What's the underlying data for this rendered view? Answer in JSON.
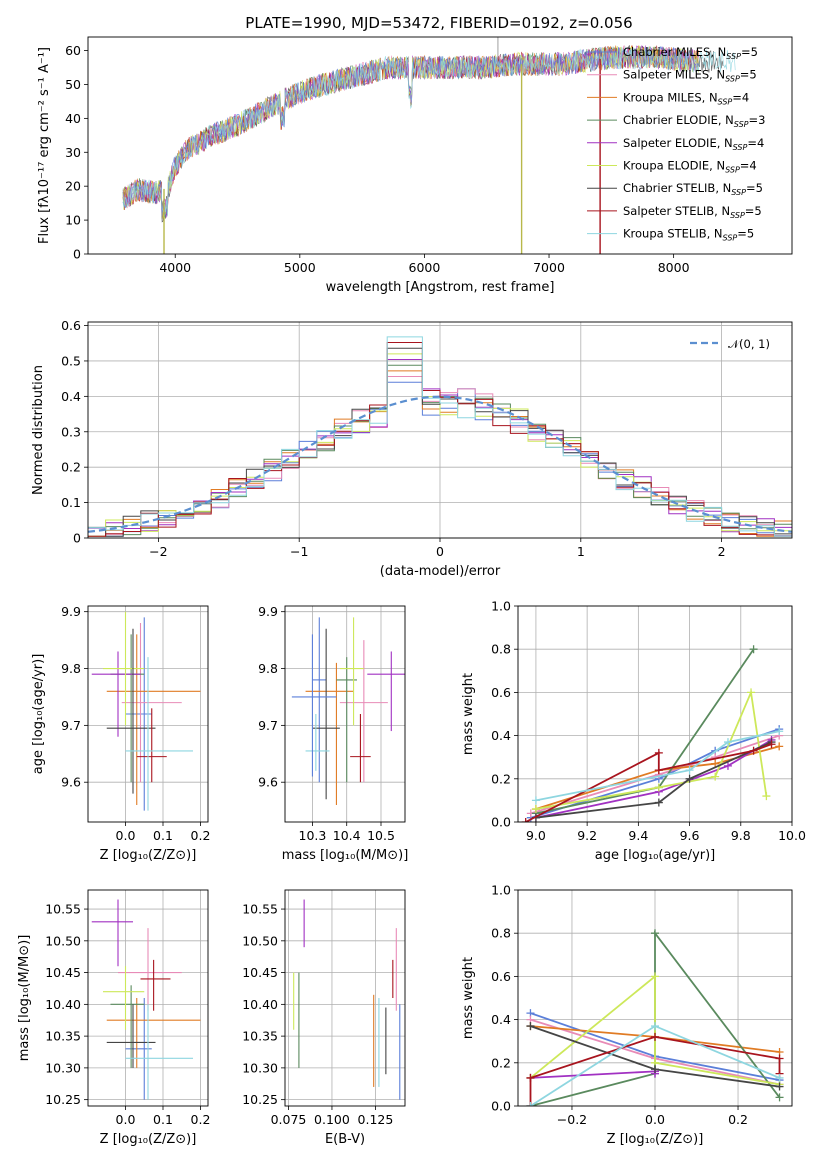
{
  "figure_title": "PLATE=1990, MJD=53472, FIBERID=0192, z=0.056",
  "models": [
    {
      "name": "Chabrier MILES",
      "nssp": "5",
      "color": "#5b7fd9"
    },
    {
      "name": "Salpeter MILES",
      "nssp": "5",
      "color": "#e88bb7"
    },
    {
      "name": "Kroupa MILES",
      "nssp": "4",
      "color": "#e07b24"
    },
    {
      "name": "Chabrier ELODIE",
      "nssp": "3",
      "color": "#5a8a5e"
    },
    {
      "name": "Salpeter ELODIE",
      "nssp": "4",
      "color": "#a131c2"
    },
    {
      "name": "Kroupa ELODIE",
      "nssp": "4",
      "color": "#cde85a"
    },
    {
      "name": "Chabrier STELIB",
      "nssp": "5",
      "color": "#454545"
    },
    {
      "name": "Salpeter STELIB",
      "nssp": "5",
      "color": "#a8141e"
    },
    {
      "name": "Kroupa STELIB",
      "nssp": "5",
      "color": "#8ed6e0"
    }
  ],
  "chart_data": [
    {
      "id": "spectrum",
      "type": "line",
      "title": "PLATE=1990, MJD=53472, FIBERID=0192, z=0.056",
      "xlabel": "wavelength [Angstrom, rest frame]",
      "ylabel": "Flux [fλ10⁻¹⁷ erg cm⁻² s⁻¹ A⁻¹]",
      "xlim": [
        3300,
        8950
      ],
      "ylim": [
        0,
        64
      ],
      "xticks": [
        4000,
        5000,
        6000,
        7000,
        8000
      ],
      "yticks": [
        0,
        10,
        20,
        30,
        40,
        50,
        60
      ],
      "grid": false,
      "legend_position": "right",
      "continuum": {
        "x": [
          3580,
          3700,
          3850,
          3950,
          4000,
          4100,
          4300,
          4500,
          4700,
          4900,
          5100,
          5300,
          5500,
          5700,
          5900,
          6100,
          6300,
          6500,
          6700,
          6900,
          7100,
          7300,
          7500,
          7700,
          7900,
          8100,
          8300,
          8500
        ],
        "y": [
          16,
          19,
          18,
          20,
          26,
          31,
          35,
          38,
          42,
          46,
          49,
          51,
          53,
          55,
          55,
          55,
          55,
          55,
          56,
          56,
          56,
          57,
          58,
          58,
          58,
          57,
          57,
          57
        ]
      },
      "dropouts": [
        3910,
        6780,
        7410
      ]
    },
    {
      "id": "residuals",
      "type": "histogram",
      "xlabel": "(data-model)/error",
      "ylabel": "Normed distribution",
      "xlim": [
        -2.5,
        2.5
      ],
      "ylim": [
        0,
        0.61
      ],
      "xticks": [
        -2,
        -1,
        0,
        1,
        2
      ],
      "yticks": [
        0.0,
        0.1,
        0.2,
        0.3,
        0.4,
        0.5,
        0.6
      ],
      "xtick_labels": [
        "−2",
        "−1",
        "0",
        "1",
        "2"
      ],
      "grid": true,
      "legend_position": "top-right",
      "reference_label": "𝒩(0, 1)",
      "reference_color": "#5b8fd0",
      "bin_width": 0.125
    },
    {
      "id": "age-vs-Z",
      "type": "scatter-errorbar",
      "xlabel": "Z [log₁₀(Z/Z⊙)]",
      "ylabel": "age  [log₁₀(age/yr)]",
      "xlim": [
        -0.1,
        0.22
      ],
      "ylim": [
        9.53,
        9.91
      ],
      "xticks": [
        0.0,
        0.1,
        0.2
      ],
      "yticks": [
        9.6,
        9.7,
        9.8,
        9.9
      ],
      "xtick_labels": [
        "0.0",
        "0.1",
        "0.2"
      ],
      "ytick_labels": [
        "9.6",
        "9.7",
        "9.8",
        "9.9"
      ],
      "grid": true,
      "points": [
        {
          "x": 0.05,
          "y": 9.72,
          "xl": 0.0,
          "xh": 0.07,
          "yl": 9.55,
          "yh": 9.89,
          "c": 0
        },
        {
          "x": 0.04,
          "y": 9.74,
          "xl": -0.01,
          "xh": 0.15,
          "yl": 9.6,
          "yh": 9.88,
          "c": 1
        },
        {
          "x": 0.03,
          "y": 9.76,
          "xl": -0.05,
          "xh": 0.2,
          "yl": 9.56,
          "yh": 9.86,
          "c": 2
        },
        {
          "x": 0.015,
          "y": 9.79,
          "xl": -0.04,
          "xh": 0.05,
          "yl": 9.6,
          "yh": 9.86,
          "c": 3
        },
        {
          "x": -0.02,
          "y": 9.79,
          "xl": -0.09,
          "xh": 0.04,
          "yl": 9.68,
          "yh": 9.83,
          "c": 4
        },
        {
          "x": 0.0,
          "y": 9.8,
          "xl": -0.06,
          "xh": 0.05,
          "yl": 9.7,
          "yh": 9.9,
          "c": 5
        },
        {
          "x": 0.02,
          "y": 9.695,
          "xl": -0.05,
          "xh": 0.08,
          "yl": 9.58,
          "yh": 9.87,
          "c": 6
        },
        {
          "x": 0.07,
          "y": 9.645,
          "xl": 0.03,
          "xh": 0.11,
          "yl": 9.6,
          "yh": 9.73,
          "c": 7
        },
        {
          "x": 0.06,
          "y": 9.655,
          "xl": 0.0,
          "xh": 0.18,
          "yl": 9.55,
          "yh": 9.82,
          "c": 8
        }
      ]
    },
    {
      "id": "age-vs-mass",
      "type": "scatter-errorbar",
      "xlabel": "mass [log₁₀(M/M⊙)]",
      "ylabel": "",
      "xlim": [
        10.22,
        10.57
      ],
      "ylim": [
        9.53,
        9.91
      ],
      "xticks": [
        10.3,
        10.4,
        10.5
      ],
      "yticks": [
        9.6,
        9.7,
        9.8,
        9.9
      ],
      "xtick_labels": [
        "10.3",
        "10.4",
        "10.5"
      ],
      "ytick_labels": [
        "9.6",
        "9.7",
        "9.8",
        "9.9"
      ],
      "grid": true,
      "points": [
        {
          "x": 10.32,
          "y": 9.78,
          "xl": 10.3,
          "xh": 10.34,
          "yl": 9.6,
          "yh": 9.89,
          "c": 0
        },
        {
          "x": 10.45,
          "y": 9.74,
          "xl": 10.38,
          "xh": 10.52,
          "yl": 9.6,
          "yh": 9.85,
          "c": 1
        },
        {
          "x": 10.37,
          "y": 9.76,
          "xl": 10.28,
          "xh": 10.42,
          "yl": 9.56,
          "yh": 9.81,
          "c": 2
        },
        {
          "x": 10.4,
          "y": 9.78,
          "xl": 10.37,
          "xh": 10.43,
          "yl": 9.6,
          "yh": 9.82,
          "c": 3
        },
        {
          "x": 10.53,
          "y": 9.79,
          "xl": 10.46,
          "xh": 10.57,
          "yl": 9.69,
          "yh": 9.83,
          "c": 4
        },
        {
          "x": 10.42,
          "y": 9.8,
          "xl": 10.38,
          "xh": 10.45,
          "yl": 9.7,
          "yh": 9.89,
          "c": 5
        },
        {
          "x": 10.34,
          "y": 9.695,
          "xl": 10.3,
          "xh": 10.38,
          "yl": 9.57,
          "yh": 9.87,
          "c": 6
        },
        {
          "x": 10.44,
          "y": 9.645,
          "xl": 10.41,
          "xh": 10.47,
          "yl": 9.6,
          "yh": 9.72,
          "c": 7
        },
        {
          "x": 10.31,
          "y": 9.655,
          "xl": 10.28,
          "xh": 10.35,
          "yl": 9.62,
          "yh": 9.72,
          "c": 8
        },
        {
          "x": 10.3,
          "y": 9.75,
          "xl": 10.24,
          "xh": 10.37,
          "yl": 9.61,
          "yh": 9.86,
          "c": 0
        }
      ]
    },
    {
      "id": "weight-vs-age",
      "type": "line",
      "xlabel": "age  [log₁₀(age/yr)]",
      "ylabel": "mass weight",
      "xlim": [
        8.93,
        10.0
      ],
      "ylim": [
        0,
        1.0
      ],
      "xticks": [
        9.0,
        9.2,
        9.4,
        9.6,
        9.8,
        10.0
      ],
      "yticks": [
        0.0,
        0.2,
        0.4,
        0.6,
        0.8,
        1.0
      ],
      "xtick_labels": [
        "9.0",
        "9.2",
        "9.4",
        "9.6",
        "9.8",
        "10.0"
      ],
      "ytick_labels": [
        "0.0",
        "0.2",
        "0.4",
        "0.6",
        "0.8",
        "1.0"
      ],
      "grid": true,
      "series": [
        {
          "c": 0,
          "x": [
            8.98,
            9.48,
            9.7,
            9.95
          ],
          "y": [
            0.02,
            0.2,
            0.33,
            0.43
          ]
        },
        {
          "c": 1,
          "x": [
            8.98,
            9.48,
            9.7,
            9.95
          ],
          "y": [
            0.04,
            0.22,
            0.3,
            0.4
          ]
        },
        {
          "c": 2,
          "x": [
            9.0,
            9.48,
            9.7,
            9.95
          ],
          "y": [
            0.06,
            0.24,
            0.27,
            0.35
          ]
        },
        {
          "c": 3,
          "x": [
            9.0,
            9.48,
            9.85
          ],
          "y": [
            0.04,
            0.16,
            0.8
          ]
        },
        {
          "c": 4,
          "x": [
            9.0,
            9.48,
            9.75,
            9.92
          ],
          "y": [
            0.02,
            0.14,
            0.26,
            0.38
          ]
        },
        {
          "c": 5,
          "x": [
            9.0,
            9.48,
            9.7,
            9.84,
            9.9
          ],
          "y": [
            0.06,
            0.16,
            0.21,
            0.6,
            0.12
          ]
        },
        {
          "c": 6,
          "x": [
            9.0,
            9.48,
            9.6,
            9.92
          ],
          "y": [
            0.02,
            0.09,
            0.2,
            0.37
          ]
        },
        {
          "c": 7,
          "x": [
            8.96,
            9.48,
            9.48,
            9.85,
            9.92
          ],
          "y": [
            0.0,
            0.32,
            0.24,
            0.33,
            0.36
          ]
        },
        {
          "c": 8,
          "x": [
            9.0,
            9.6,
            9.75,
            9.95
          ],
          "y": [
            0.1,
            0.24,
            0.37,
            0.42
          ]
        }
      ]
    },
    {
      "id": "mass-vs-Z",
      "type": "scatter-errorbar",
      "xlabel": "Z [log₁₀(Z/Z⊙)]",
      "ylabel": "mass [log₁₀(M/M⊙)]",
      "xlim": [
        -0.1,
        0.22
      ],
      "ylim": [
        10.24,
        10.58
      ],
      "xticks": [
        0.0,
        0.1,
        0.2
      ],
      "yticks": [
        10.25,
        10.3,
        10.35,
        10.4,
        10.45,
        10.5,
        10.55
      ],
      "xtick_labels": [
        "0.0",
        "0.1",
        "0.2"
      ],
      "ytick_labels": [
        "10.25",
        "10.30",
        "10.35",
        "10.40",
        "10.45",
        "10.50",
        "10.55"
      ],
      "grid": true,
      "points": [
        {
          "x": 0.05,
          "y": 10.33,
          "xl": 0.0,
          "xh": 0.07,
          "yl": 10.25,
          "yh": 10.41,
          "c": 0
        },
        {
          "x": 0.06,
          "y": 10.45,
          "xl": -0.02,
          "xh": 0.15,
          "yl": 10.39,
          "yh": 10.52,
          "c": 1
        },
        {
          "x": 0.03,
          "y": 10.375,
          "xl": -0.05,
          "xh": 0.2,
          "yl": 10.3,
          "yh": 10.41,
          "c": 2
        },
        {
          "x": 0.015,
          "y": 10.4,
          "xl": -0.04,
          "xh": 0.05,
          "yl": 10.3,
          "yh": 10.43,
          "c": 3
        },
        {
          "x": -0.02,
          "y": 10.53,
          "xl": -0.09,
          "xh": 0.02,
          "yl": 10.46,
          "yh": 10.565,
          "c": 4
        },
        {
          "x": 0.0,
          "y": 10.42,
          "xl": -0.06,
          "xh": 0.05,
          "yl": 10.36,
          "yh": 10.46,
          "c": 5
        },
        {
          "x": 0.02,
          "y": 10.34,
          "xl": -0.05,
          "xh": 0.08,
          "yl": 10.3,
          "yh": 10.4,
          "c": 6
        },
        {
          "x": 0.075,
          "y": 10.44,
          "xl": 0.04,
          "xh": 0.12,
          "yl": 10.39,
          "yh": 10.47,
          "c": 7
        },
        {
          "x": 0.06,
          "y": 10.315,
          "xl": 0.0,
          "xh": 0.18,
          "yl": 10.25,
          "yh": 10.4,
          "c": 8
        }
      ]
    },
    {
      "id": "mass-vs-ebv",
      "type": "scatter-errorbar",
      "xlabel": "E(B-V)",
      "ylabel": "",
      "xlim": [
        0.073,
        0.142
      ],
      "ylim": [
        10.24,
        10.58
      ],
      "xticks": [
        0.075,
        0.1,
        0.125
      ],
      "yticks": [
        10.25,
        10.3,
        10.35,
        10.4,
        10.45,
        10.5,
        10.55
      ],
      "xtick_labels": [
        "0.075",
        "0.100",
        "0.125"
      ],
      "ytick_labels": [
        "10.25",
        "10.30",
        "10.35",
        "10.40",
        "10.45",
        "10.50",
        "10.55"
      ],
      "grid": true,
      "points": [
        {
          "x": 0.139,
          "y": 10.33,
          "xl": 0.139,
          "xh": 0.139,
          "yl": 10.25,
          "yh": 10.4,
          "c": 0
        },
        {
          "x": 0.137,
          "y": 10.45,
          "xl": 0.137,
          "xh": 0.137,
          "yl": 10.39,
          "yh": 10.52,
          "c": 1
        },
        {
          "x": 0.124,
          "y": 10.35,
          "xl": 0.124,
          "xh": 0.124,
          "yl": 10.27,
          "yh": 10.415,
          "c": 2
        },
        {
          "x": 0.081,
          "y": 10.375,
          "xl": 0.081,
          "xh": 0.081,
          "yl": 10.3,
          "yh": 10.45,
          "c": 3
        },
        {
          "x": 0.084,
          "y": 10.53,
          "xl": 0.084,
          "xh": 0.084,
          "yl": 10.49,
          "yh": 10.565,
          "c": 4
        },
        {
          "x": 0.078,
          "y": 10.4,
          "xl": 0.078,
          "xh": 0.078,
          "yl": 10.36,
          "yh": 10.45,
          "c": 5
        },
        {
          "x": 0.131,
          "y": 10.34,
          "xl": 0.131,
          "xh": 0.131,
          "yl": 10.29,
          "yh": 10.395,
          "c": 6
        },
        {
          "x": 0.135,
          "y": 10.44,
          "xl": 0.135,
          "xh": 0.135,
          "yl": 10.41,
          "yh": 10.47,
          "c": 7
        },
        {
          "x": 0.127,
          "y": 10.36,
          "xl": 0.127,
          "xh": 0.127,
          "yl": 10.27,
          "yh": 10.41,
          "c": 8
        }
      ]
    },
    {
      "id": "weight-vs-Z",
      "type": "line",
      "xlabel": "Z [log₁₀(Z/Z⊙)]",
      "ylabel": "mass weight",
      "xlim": [
        -0.33,
        0.33
      ],
      "ylim": [
        0,
        1.0
      ],
      "xticks": [
        -0.2,
        0.0,
        0.2
      ],
      "yticks": [
        0.0,
        0.2,
        0.4,
        0.6,
        0.8,
        1.0
      ],
      "xtick_labels": [
        "−0.2",
        "0.0",
        "0.2"
      ],
      "ytick_labels": [
        "0.0",
        "0.2",
        "0.4",
        "0.6",
        "0.8",
        "1.0"
      ],
      "grid": true,
      "series": [
        {
          "c": 0,
          "x": [
            -0.3,
            0.0,
            0.3
          ],
          "y": [
            0.43,
            0.23,
            0.12
          ]
        },
        {
          "c": 1,
          "x": [
            -0.3,
            0.0,
            0.3
          ],
          "y": [
            0.4,
            0.22,
            0.1
          ]
        },
        {
          "c": 2,
          "x": [
            -0.3,
            0.0,
            0.3
          ],
          "y": [
            0.37,
            0.32,
            0.25
          ]
        },
        {
          "c": 3,
          "x": [
            -0.3,
            0.0,
            0.0,
            0.3
          ],
          "y": [
            0.0,
            0.15,
            0.8,
            0.04
          ]
        },
        {
          "c": 4,
          "x": [
            -0.3,
            0.0,
            0.0
          ],
          "y": [
            0.13,
            0.16,
            0.15
          ]
        },
        {
          "c": 5,
          "x": [
            -0.3,
            0.0,
            0.0,
            0.3
          ],
          "y": [
            0.13,
            0.6,
            0.2,
            0.1
          ]
        },
        {
          "c": 6,
          "x": [
            -0.3,
            0.0,
            0.3
          ],
          "y": [
            0.37,
            0.17,
            0.09
          ]
        },
        {
          "c": 7,
          "x": [
            -0.3,
            -0.3,
            0.0,
            0.3,
            0.3
          ],
          "y": [
            0.0,
            0.13,
            0.32,
            0.22,
            0.15
          ]
        },
        {
          "c": 8,
          "x": [
            -0.3,
            0.0,
            0.3
          ],
          "y": [
            0.0,
            0.37,
            0.13
          ]
        }
      ]
    }
  ]
}
